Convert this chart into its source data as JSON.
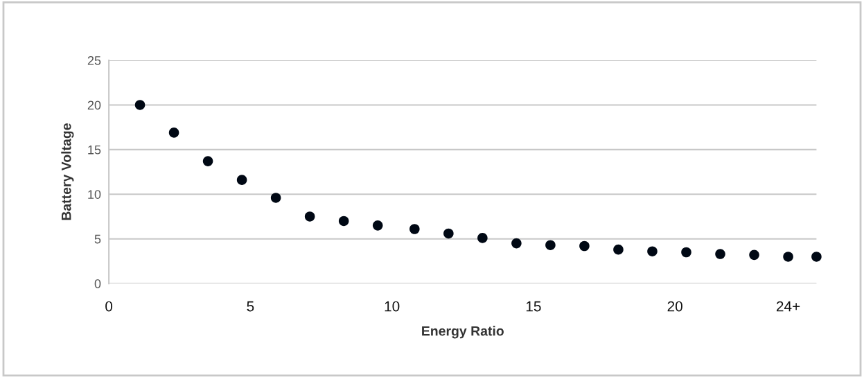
{
  "chart_data": {
    "type": "scatter",
    "xlabel": "Energy Ratio",
    "ylabel": "Battery Voltage",
    "x": [
      1.1,
      2.3,
      3.5,
      4.7,
      5.9,
      7.1,
      8.3,
      9.5,
      10.8,
      12.0,
      13.2,
      14.4,
      15.6,
      16.8,
      18.0,
      19.2,
      20.4,
      21.6,
      22.8,
      24.0,
      25.0
    ],
    "series": [
      {
        "color": "#000814",
        "values": [
          20.0,
          16.9,
          13.7,
          11.6,
          9.6,
          7.5,
          7.0,
          6.5,
          6.1,
          5.6,
          5.1,
          4.5,
          4.3,
          4.2,
          3.8,
          3.6,
          3.5,
          3.3,
          3.2,
          3.0,
          3.0
        ]
      }
    ],
    "xlim": [
      0,
      25
    ],
    "ylim": [
      0,
      25
    ],
    "xticks": [
      0,
      5,
      10,
      15,
      20,
      {
        "value": 24,
        "label": "24+"
      }
    ],
    "yticks": [
      0,
      5,
      10,
      15,
      20,
      25
    ],
    "grid": "y",
    "marker": "circle"
  }
}
